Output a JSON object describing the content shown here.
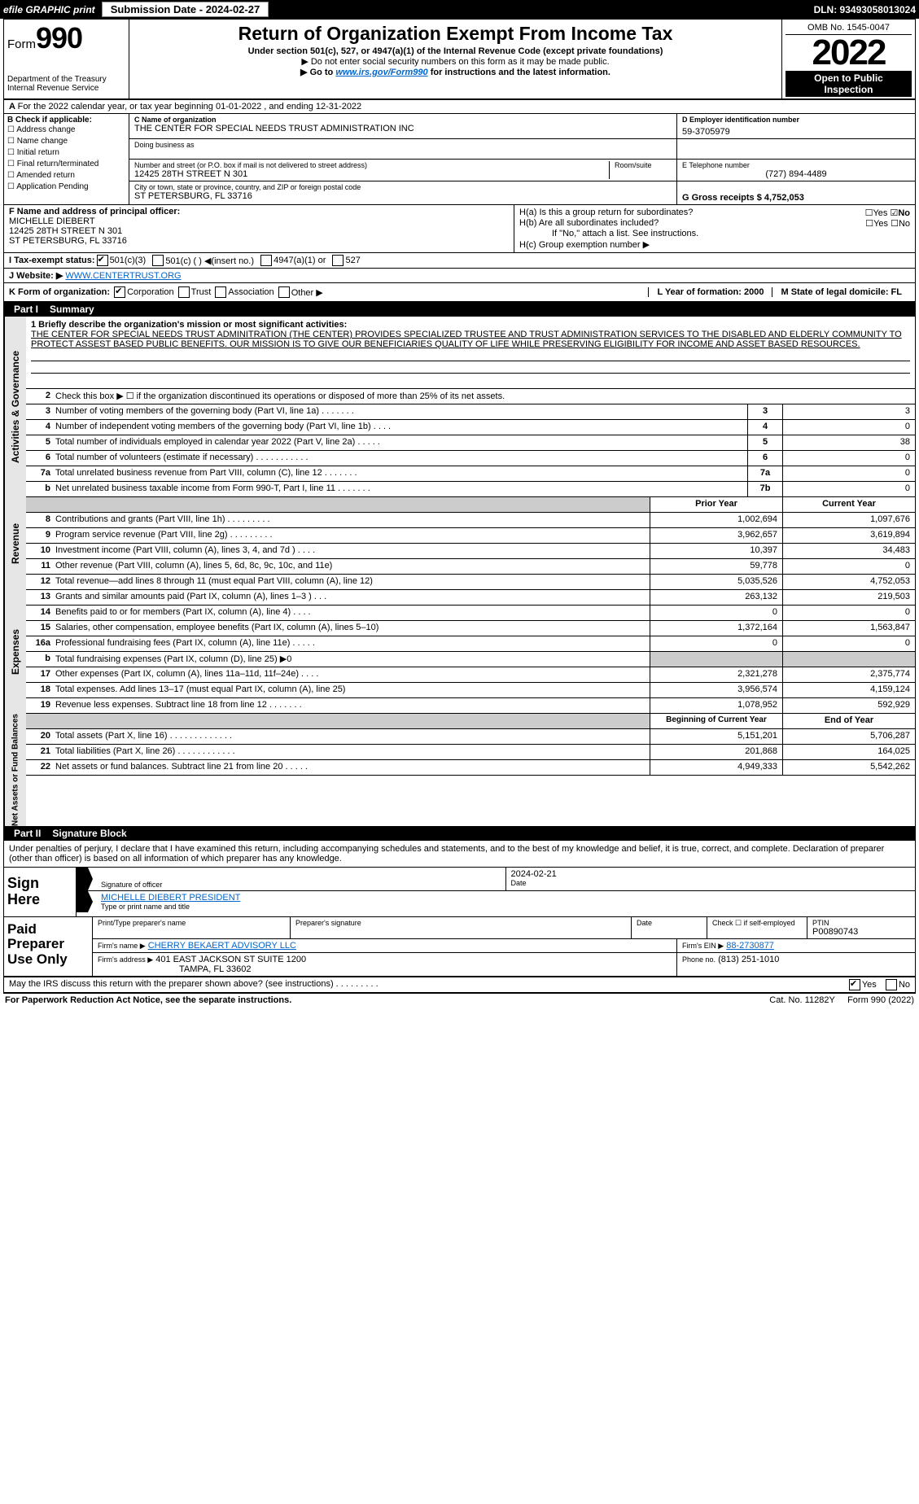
{
  "topbar": {
    "efile_label": "efile GRAPHIC print",
    "submission_label": "Submission Date - 2024-02-27",
    "dln": "DLN: 93493058013024"
  },
  "header": {
    "form_prefix": "Form",
    "form_number": "990",
    "title": "Return of Organization Exempt From Income Tax",
    "subtitle": "Under section 501(c), 527, or 4947(a)(1) of the Internal Revenue Code (except private foundations)",
    "warn": "▶ Do not enter social security numbers on this form as it may be made public.",
    "goto_prefix": "▶ Go to ",
    "goto_link": "www.irs.gov/Form990",
    "goto_suffix": " for instructions and the latest information.",
    "dept": "Department of the Treasury",
    "irs": "Internal Revenue Service",
    "omb": "OMB No. 1545-0047",
    "year": "2022",
    "open_pub_1": "Open to Public",
    "open_pub_2": "Inspection"
  },
  "row_a": "For the 2022 calendar year, or tax year beginning 01-01-2022    , and ending 12-31-2022",
  "section_b": {
    "label": "B Check if applicable:",
    "opts": [
      "Address change",
      "Name change",
      "Initial return",
      "Final return/terminated",
      "Amended return",
      "Application Pending"
    ]
  },
  "section_c": {
    "name_lbl": "C Name of organization",
    "name": "THE CENTER FOR SPECIAL NEEDS TRUST ADMINISTRATION INC",
    "dba_lbl": "Doing business as",
    "addr_lbl": "Number and street (or P.O. box if mail is not delivered to street address)",
    "room_lbl": "Room/suite",
    "addr": "12425 28TH STREET N 301",
    "city_lbl": "City or town, state or province, country, and ZIP or foreign postal code",
    "city": "ST PETERSBURG, FL  33716"
  },
  "section_d": {
    "ein_lbl": "D Employer identification number",
    "ein": "59-3705979",
    "tel_lbl": "E Telephone number",
    "tel": "(727) 894-4489",
    "gross_lbl": "G Gross receipts $ 4,752,053"
  },
  "section_f": {
    "lbl": "F  Name and address of principal officer:",
    "name": "MICHELLE DIEBERT",
    "addr1": "12425 28TH STREET N 301",
    "addr2": "ST PETERSBURG, FL  33716"
  },
  "section_h": {
    "ha": "H(a)  Is this a group return for subordinates?",
    "hb": "H(b)  Are all subordinates included?",
    "hb_note": "If \"No,\" attach a list. See instructions.",
    "hc": "H(c)  Group exemption number ▶",
    "yes": "Yes",
    "no": "No"
  },
  "section_i": {
    "lbl": "I   Tax-exempt status:",
    "o1": "501(c)(3)",
    "o2": "501(c) (  ) ◀(insert no.)",
    "o3": "4947(a)(1) or",
    "o4": "527"
  },
  "section_j": {
    "lbl": "J   Website: ▶",
    "val": "WWW.CENTERTRUST.ORG"
  },
  "section_k": {
    "lbl": "K Form of organization:",
    "o1": "Corporation",
    "o2": "Trust",
    "o3": "Association",
    "o4": "Other ▶"
  },
  "section_lm": {
    "l_lbl": "L Year of formation: 2000",
    "m_lbl": "M State of legal domicile: FL"
  },
  "part1": {
    "label": "Part I",
    "title": "Summary",
    "briefly_lbl": "1  Briefly describe the organization's mission or most significant activities:",
    "briefly": "THE CENTER FOR SPECIAL NEEDS TRUST ADMINITRATION (THE CENTER) PROVIDES SPECIALIZED TRUSTEE AND TRUST ADMINISTRATION SERVICES TO THE DISABLED AND ELDERLY COMMUNITY TO PROTECT ASSEST BASED PUBLIC BENEFITS. OUR MISSION IS TO GIVE OUR BENEFICIARIES QUALITY OF LIFE WHILE PRESERVING ELIGIBILITY FOR INCOME AND ASSET BASED RESOURCES.",
    "line2": "Check this box ▶ ☐  if the organization discontinued its operations or disposed of more than 25% of its net assets.",
    "tab_ag": "Activities & Governance",
    "tab_rev": "Revenue",
    "tab_exp": "Expenses",
    "tab_net": "Net Assets or Fund Balances",
    "prior_year": "Prior Year",
    "current_year": "Current Year",
    "begin_year": "Beginning of Current Year",
    "end_year": "End of Year",
    "rows_ag": [
      {
        "n": "3",
        "d": "Number of voting members of the governing body (Part VI, line 1a)   .    .    .    .    .    .    .",
        "c": "3",
        "v": "3"
      },
      {
        "n": "4",
        "d": "Number of independent voting members of the governing body (Part VI, line 1b)   .    .    .    .",
        "c": "4",
        "v": "0"
      },
      {
        "n": "5",
        "d": "Total number of individuals employed in calendar year 2022 (Part V, line 2a)   .    .    .    .    .",
        "c": "5",
        "v": "38"
      },
      {
        "n": "6",
        "d": "Total number of volunteers (estimate if necessary)    .    .    .    .    .    .    .    .    .    .    .",
        "c": "6",
        "v": "0"
      },
      {
        "n": "7a",
        "d": "Total unrelated business revenue from Part VIII, column (C), line 12   .    .    .    .    .    .    .",
        "c": "7a",
        "v": "0"
      },
      {
        "n": "b",
        "d": "Net unrelated business taxable income from Form 990-T, Part I, line 11   .    .    .    .    .    .    .",
        "c": "7b",
        "v": "0"
      }
    ],
    "rows_rev": [
      {
        "n": "8",
        "d": "Contributions and grants (Part VIII, line 1h)   .    .    .    .    .    .    .    .    .",
        "p": "1,002,694",
        "c": "1,097,676"
      },
      {
        "n": "9",
        "d": "Program service revenue (Part VIII, line 2g)   .    .    .    .    .    .    .    .    .",
        "p": "3,962,657",
        "c": "3,619,894"
      },
      {
        "n": "10",
        "d": "Investment income (Part VIII, column (A), lines 3, 4, and 7d )    .    .    .    .",
        "p": "10,397",
        "c": "34,483"
      },
      {
        "n": "11",
        "d": "Other revenue (Part VIII, column (A), lines 5, 6d, 8c, 9c, 10c, and 11e)",
        "p": "59,778",
        "c": "0"
      },
      {
        "n": "12",
        "d": "Total revenue—add lines 8 through 11 (must equal Part VIII, column (A), line 12)",
        "p": "5,035,526",
        "c": "4,752,053"
      }
    ],
    "rows_exp": [
      {
        "n": "13",
        "d": "Grants and similar amounts paid (Part IX, column (A), lines 1–3 )   .    .    .",
        "p": "263,132",
        "c": "219,503"
      },
      {
        "n": "14",
        "d": "Benefits paid to or for members (Part IX, column (A), line 4)   .    .    .    .",
        "p": "0",
        "c": "0"
      },
      {
        "n": "15",
        "d": "Salaries, other compensation, employee benefits (Part IX, column (A), lines 5–10)",
        "p": "1,372,164",
        "c": "1,563,847"
      },
      {
        "n": "16a",
        "d": "Professional fundraising fees (Part IX, column (A), line 11e)   .    .    .    .    .",
        "p": "0",
        "c": "0"
      },
      {
        "n": "b",
        "d": "Total fundraising expenses (Part IX, column (D), line 25) ▶0",
        "p": "",
        "c": "",
        "gray": true
      },
      {
        "n": "17",
        "d": "Other expenses (Part IX, column (A), lines 11a–11d, 11f–24e)   .    .    .    .",
        "p": "2,321,278",
        "c": "2,375,774"
      },
      {
        "n": "18",
        "d": "Total expenses. Add lines 13–17 (must equal Part IX, column (A), line 25)",
        "p": "3,956,574",
        "c": "4,159,124"
      },
      {
        "n": "19",
        "d": "Revenue less expenses. Subtract line 18 from line 12   .    .    .    .    .    .    .",
        "p": "1,078,952",
        "c": "592,929"
      }
    ],
    "rows_net": [
      {
        "n": "20",
        "d": "Total assets (Part X, line 16)   .    .    .    .    .    .    .    .    .    .    .    .    .",
        "p": "5,151,201",
        "c": "5,706,287"
      },
      {
        "n": "21",
        "d": "Total liabilities (Part X, line 26)   .    .    .    .    .    .    .    .    .    .    .    .",
        "p": "201,868",
        "c": "164,025"
      },
      {
        "n": "22",
        "d": "Net assets or fund balances. Subtract line 21 from line 20   .    .    .    .    .",
        "p": "4,949,333",
        "c": "5,542,262"
      }
    ]
  },
  "part2": {
    "label": "Part II",
    "title": "Signature Block",
    "declare": "Under penalties of perjury, I declare that I have examined this return, including accompanying schedules and statements, and to the best of my knowledge and belief, it is true, correct, and complete. Declaration of preparer (other than officer) is based on all information of which preparer has any knowledge."
  },
  "sign": {
    "sign_here": "Sign Here",
    "sig_lbl": "Signature of officer",
    "date_lbl": "Date",
    "date": "2024-02-21",
    "name": "MICHELLE DIEBERT  PRESIDENT",
    "name_lbl": "Type or print name and title"
  },
  "paid": {
    "title": "Paid Preparer Use Only",
    "prep_name_lbl": "Print/Type preparer's name",
    "prep_sig_lbl": "Preparer's signature",
    "date_lbl": "Date",
    "check_lbl": "Check ☐ if self-employed",
    "ptin_lbl": "PTIN",
    "ptin": "P00890743",
    "firm_name_lbl": "Firm's name    ▶",
    "firm_name": "CHERRY BEKAERT ADVISORY LLC",
    "firm_ein_lbl": "Firm's EIN ▶",
    "firm_ein": "88-2730877",
    "firm_addr_lbl": "Firm's address ▶",
    "firm_addr1": "401 EAST JACKSON ST SUITE 1200",
    "firm_addr2": "TAMPA, FL  33602",
    "phone_lbl": "Phone no.",
    "phone": "(813) 251-1010"
  },
  "footer": {
    "may_irs": "May the IRS discuss this return with the preparer shown above? (see instructions)   .    .    .    .    .    .    .    .    .",
    "yes": "Yes",
    "no": "No",
    "paperwork": "For Paperwork Reduction Act Notice, see the separate instructions.",
    "cat": "Cat. No. 11282Y",
    "form": "Form 990 (2022)"
  }
}
